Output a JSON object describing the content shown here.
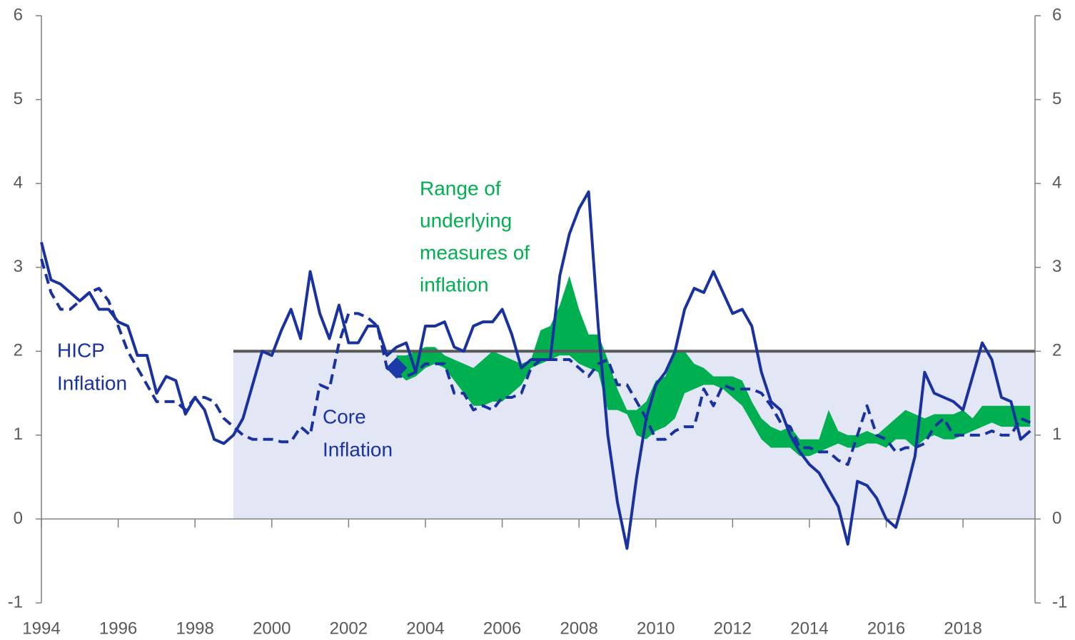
{
  "chart_data": {
    "type": "line",
    "x": [
      1994,
      1994.25,
      1994.5,
      1994.75,
      1995,
      1995.25,
      1995.5,
      1995.75,
      1996,
      1996.25,
      1996.5,
      1996.75,
      1997,
      1997.25,
      1997.5,
      1997.75,
      1998,
      1998.25,
      1998.5,
      1998.75,
      1999,
      1999.25,
      1999.5,
      1999.75,
      2000,
      2000.25,
      2000.5,
      2000.75,
      2001,
      2001.25,
      2001.5,
      2001.75,
      2002,
      2002.25,
      2002.5,
      2002.75,
      2003,
      2003.25,
      2003.5,
      2003.75,
      2004,
      2004.25,
      2004.5,
      2004.75,
      2005,
      2005.25,
      2005.5,
      2005.75,
      2006,
      2006.25,
      2006.5,
      2006.75,
      2007,
      2007.25,
      2007.5,
      2007.75,
      2008,
      2008.25,
      2008.5,
      2008.75,
      2009,
      2009.25,
      2009.5,
      2009.75,
      2010,
      2010.25,
      2010.5,
      2010.75,
      2011,
      2011.25,
      2011.5,
      2011.75,
      2012,
      2012.25,
      2012.5,
      2012.75,
      2013,
      2013.25,
      2013.5,
      2013.75,
      2014,
      2014.25,
      2014.5,
      2014.75,
      2015,
      2015.25,
      2015.5,
      2015.75,
      2016,
      2016.25,
      2016.5,
      2016.75,
      2017,
      2017.25,
      2017.5,
      2017.75,
      2018,
      2018.25,
      2018.5,
      2018.75,
      2019,
      2019.25,
      2019.5,
      2019.75
    ],
    "series": [
      {
        "color": "#1a32a0",
        "dash": false,
        "values": [
          3.3,
          2.85,
          2.8,
          2.7,
          2.6,
          2.7,
          2.5,
          2.5,
          2.35,
          2.3,
          1.95,
          1.95,
          1.5,
          1.7,
          1.65,
          1.25,
          1.45,
          1.3,
          0.95,
          0.9,
          1.0,
          1.2,
          1.6,
          2.0,
          1.95,
          2.25,
          2.5,
          2.15,
          2.95,
          2.45,
          2.15,
          2.55,
          2.1,
          2.1,
          2.3,
          2.3,
          1.95,
          2.05,
          2.1,
          1.75,
          2.3,
          2.3,
          2.35,
          2.05,
          2.0,
          2.3,
          2.35,
          2.35,
          2.5,
          2.2,
          1.8,
          1.9,
          1.9,
          1.9,
          2.9,
          3.4,
          3.7,
          3.9,
          2.3,
          1.0,
          0.2,
          -0.35,
          0.5,
          1.2,
          1.6,
          1.75,
          2.0,
          2.5,
          2.75,
          2.7,
          2.95,
          2.7,
          2.45,
          2.5,
          2.3,
          1.75,
          1.4,
          1.3,
          1.0,
          0.8,
          0.65,
          0.55,
          0.35,
          0.15,
          -0.3,
          0.45,
          0.4,
          0.25,
          0.0,
          -0.1,
          0.3,
          0.75,
          1.75,
          1.5,
          1.45,
          1.4,
          1.3,
          1.7,
          2.1,
          1.9,
          1.45,
          1.4,
          0.95,
          1.05
        ]
      },
      {
        "color": "#1a32a0",
        "dash": true,
        "values": [
          3.1,
          2.7,
          2.5,
          2.5,
          2.6,
          2.7,
          2.75,
          2.6,
          2.3,
          2.0,
          1.8,
          1.6,
          1.4,
          1.4,
          1.4,
          1.3,
          1.45,
          1.45,
          1.4,
          1.2,
          1.1,
          1.0,
          0.95,
          0.95,
          0.95,
          0.92,
          0.92,
          1.1,
          1.0,
          1.6,
          1.55,
          2.1,
          2.45,
          2.45,
          2.4,
          2.3,
          1.8,
          1.7,
          1.7,
          1.75,
          1.85,
          1.85,
          1.85,
          1.5,
          1.5,
          1.3,
          1.35,
          1.3,
          1.45,
          1.45,
          1.5,
          1.8,
          1.9,
          1.9,
          1.9,
          1.9,
          1.8,
          1.7,
          1.85,
          1.9,
          1.6,
          1.6,
          1.4,
          1.2,
          0.95,
          0.95,
          1.05,
          1.1,
          1.1,
          1.55,
          1.35,
          1.6,
          1.55,
          1.55,
          1.55,
          1.5,
          1.35,
          1.15,
          1.1,
          0.85,
          0.85,
          0.8,
          0.8,
          0.7,
          0.65,
          1.0,
          1.35,
          1.0,
          0.95,
          0.8,
          0.85,
          0.85,
          0.9,
          1.1,
          1.2,
          1.0,
          1.0,
          1.0,
          1.0,
          1.05,
          1.0,
          1.0,
          1.2,
          1.15
        ]
      }
    ],
    "range": {
      "color": "#00b050",
      "low": [
        null,
        null,
        null,
        null,
        null,
        null,
        null,
        null,
        null,
        null,
        null,
        null,
        null,
        null,
        null,
        null,
        null,
        null,
        null,
        null,
        null,
        null,
        null,
        null,
        null,
        null,
        null,
        null,
        null,
        null,
        null,
        null,
        null,
        null,
        null,
        null,
        null,
        1.75,
        1.65,
        1.7,
        1.8,
        1.85,
        1.8,
        1.65,
        1.5,
        1.35,
        1.35,
        1.4,
        1.4,
        1.5,
        1.6,
        1.8,
        1.85,
        1.9,
        1.95,
        1.95,
        1.85,
        1.8,
        1.75,
        1.3,
        1.3,
        1.25,
        1.0,
        0.95,
        1.05,
        1.1,
        1.2,
        1.5,
        1.55,
        1.6,
        1.6,
        1.55,
        1.45,
        1.35,
        1.15,
        0.95,
        0.85,
        0.85,
        0.85,
        0.75,
        0.75,
        0.8,
        0.85,
        0.9,
        0.85,
        0.85,
        0.9,
        0.9,
        0.85,
        0.95,
        0.95,
        0.85,
        0.95,
        1.0,
        0.95,
        0.95,
        1.0,
        1.05,
        1.1,
        1.15,
        1.1,
        1.1,
        1.1,
        1.1
      ],
      "high": [
        null,
        null,
        null,
        null,
        null,
        null,
        null,
        null,
        null,
        null,
        null,
        null,
        null,
        null,
        null,
        null,
        null,
        null,
        null,
        null,
        null,
        null,
        null,
        null,
        null,
        null,
        null,
        null,
        null,
        null,
        null,
        null,
        null,
        null,
        null,
        null,
        null,
        1.95,
        1.95,
        2.0,
        2.05,
        2.05,
        1.95,
        1.9,
        1.85,
        1.8,
        1.9,
        2.0,
        1.95,
        1.9,
        1.85,
        1.9,
        2.25,
        2.3,
        2.55,
        2.9,
        2.5,
        2.2,
        2.2,
        1.9,
        1.55,
        1.3,
        1.3,
        1.4,
        1.65,
        1.7,
        2.0,
        2.0,
        1.85,
        1.8,
        1.7,
        1.7,
        1.7,
        1.65,
        1.4,
        1.2,
        1.1,
        1.05,
        1.1,
        0.95,
        0.95,
        0.95,
        1.3,
        1.05,
        1.0,
        1.0,
        1.05,
        1.0,
        1.1,
        1.2,
        1.3,
        1.25,
        1.2,
        1.25,
        1.25,
        1.25,
        1.3,
        1.2,
        1.35,
        1.35,
        1.35,
        1.35,
        1.35,
        1.35
      ]
    },
    "target": {
      "value": 2,
      "start": 1999,
      "color": "#595959",
      "fill": "#e3e6f4"
    },
    "marker": {
      "x": 2003.25,
      "y": 1.8,
      "color": "#1a3aa8"
    },
    "annotations": [
      {
        "lines": [
          "HICP",
          "Inflation"
        ],
        "color": "#1a32a0"
      },
      {
        "lines": [
          "Core",
          "Inflation"
        ],
        "color": "#1a32a0"
      },
      {
        "lines": [
          "Range of",
          "underlying",
          "measures of",
          "inflation"
        ],
        "color": "#00b050"
      }
    ],
    "xlim": [
      1994,
      2019.875
    ],
    "xticks": [
      1994,
      1996,
      1998,
      2000,
      2002,
      2004,
      2006,
      2008,
      2010,
      2012,
      2014,
      2016,
      2018
    ],
    "ylim": [
      -1,
      6
    ],
    "yticks": [
      -1,
      0,
      1,
      2,
      3,
      4,
      5,
      6
    ],
    "y2lim": [
      -1,
      6
    ],
    "y2ticks": [
      -1,
      0,
      1,
      2,
      3,
      4,
      5,
      6
    ]
  }
}
